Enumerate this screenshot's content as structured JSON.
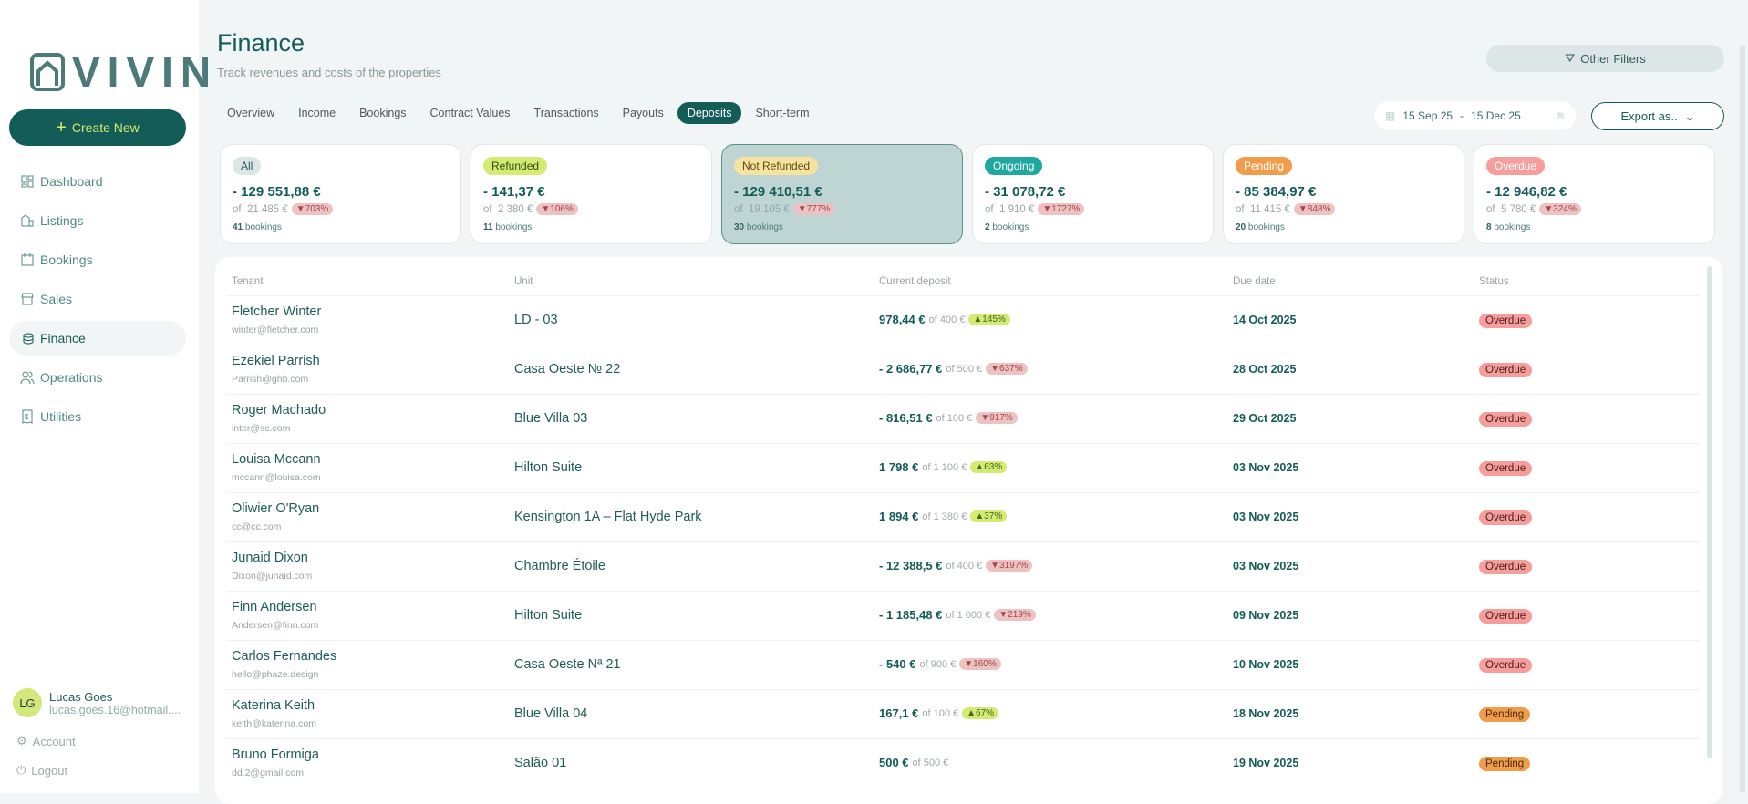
{
  "brand": {
    "logo_text": "VIVIN"
  },
  "sidebar": {
    "create_label": "Create New",
    "items": [
      {
        "label": "Dashboard",
        "icon": "dashboard-icon"
      },
      {
        "label": "Listings",
        "icon": "building-icon"
      },
      {
        "label": "Bookings",
        "icon": "calendar-icon"
      },
      {
        "label": "Sales",
        "icon": "store-icon"
      },
      {
        "label": "Finance",
        "icon": "coins-icon",
        "active": true
      },
      {
        "label": "Operations",
        "icon": "users-icon"
      },
      {
        "label": "Utilities",
        "icon": "receipt-icon"
      }
    ],
    "user": {
      "initials": "LG",
      "name": "Lucas Goes",
      "email": "lucas.goes.16@hotmail...."
    },
    "account_label": "Account",
    "logout_label": "Logout"
  },
  "header": {
    "title": "Finance",
    "subtitle": "Track revenues and costs of the properties",
    "other_filters": "Other Filters",
    "date_from": "15 Sep 25",
    "date_sep": "-",
    "date_to": "15 Dec 25",
    "export_label": "Export as.."
  },
  "tabs": [
    "Overview",
    "Income",
    "Bookings",
    "Contract Values",
    "Transactions",
    "Payouts",
    "Deposits",
    "Short-term"
  ],
  "active_tab": "Deposits",
  "cards": [
    {
      "label": "All",
      "amount": "- 129 551,88 €",
      "of": "of  21 485 €",
      "pct": "▼703%",
      "count": "41",
      "bookings": "bookings",
      "chip_bg": "#dde6e6",
      "chip_fg": "#1d5c58"
    },
    {
      "label": "Refunded",
      "amount": "- 141,37 €",
      "of": "of  2 380 €",
      "pct": "▼106%",
      "count": "11",
      "bookings": "bookings",
      "chip_bg": "#d5ea70",
      "chip_fg": "#2f4d1a"
    },
    {
      "label": "Not Refunded",
      "amount": "- 129 410,51 €",
      "of": "of  19 105 €",
      "pct": "▼777%",
      "count": "30",
      "bookings": "bookings",
      "chip_bg": "#f7e3a0",
      "chip_fg": "#5b4a1a"
    },
    {
      "label": "Ongoing",
      "amount": "- 31 078,72 €",
      "of": "of  1 910 €",
      "pct": "▼1727%",
      "count": "2",
      "bookings": "bookings",
      "chip_bg": "#1fa8a0",
      "chip_fg": "#ffffff"
    },
    {
      "label": "Pending",
      "amount": "- 85 384,97 €",
      "of": "of  11 415 €",
      "pct": "▼848%",
      "count": "20",
      "bookings": "bookings",
      "chip_bg": "#ef9d4a",
      "chip_fg": "#ffffff"
    },
    {
      "label": "Overdue",
      "amount": "- 12 946,82 €",
      "of": "of  5 780 €",
      "pct": "▼324%",
      "count": "8",
      "bookings": "bookings",
      "chip_bg": "#f59e9c",
      "chip_fg": "#ffffff"
    }
  ],
  "active_card": "Not Refunded",
  "table": {
    "columns": [
      "Tenant",
      "Unit",
      "Current deposit",
      "Due date",
      "Status"
    ],
    "rows": [
      {
        "name": "Fletcher Winter",
        "email": "winter@fletcher.com",
        "unit": "LD - 03",
        "deposit": "978,44 €",
        "of": "of 400 €",
        "pct": "▲145%",
        "dir": "up",
        "due": "14 Oct 2025",
        "status": "Overdue"
      },
      {
        "name": "Ezekiel Parrish",
        "email": "Parrish@ghb.com",
        "unit": "Casa Oeste № 22",
        "deposit": "- 2 686,77 €",
        "of": "of 500 €",
        "pct": "▼637%",
        "dir": "down",
        "due": "28 Oct 2025",
        "status": "Overdue"
      },
      {
        "name": "Roger Machado",
        "email": "inter@sc.com",
        "unit": "Blue Villa 03",
        "deposit": "- 816,51 €",
        "of": "of 100 €",
        "pct": "▼917%",
        "dir": "down",
        "due": "29 Oct 2025",
        "status": "Overdue"
      },
      {
        "name": "Louisa Mccann",
        "email": "mccann@louisa.com",
        "unit": "Hilton Suite",
        "deposit": "1 798 €",
        "of": "of 1 100 €",
        "pct": "▲63%",
        "dir": "up",
        "due": "03 Nov 2025",
        "status": "Overdue"
      },
      {
        "name": "Oliwier O'Ryan",
        "email": "cc@cc.com",
        "unit": "Kensington 1A – Flat Hyde Park",
        "deposit": "1 894 €",
        "of": "of 1 380 €",
        "pct": "▲37%",
        "dir": "up",
        "due": "03 Nov 2025",
        "status": "Overdue"
      },
      {
        "name": "Junaid Dixon",
        "email": "Dixon@junaid.com",
        "unit": "Chambre Étoile",
        "deposit": "- 12 388,5 €",
        "of": "of 400 €",
        "pct": "▼3197%",
        "dir": "down",
        "due": "03 Nov 2025",
        "status": "Overdue"
      },
      {
        "name": "Finn Andersen",
        "email": "Andersen@finn.com",
        "unit": "Hilton Suite",
        "deposit": "- 1 185,48 €",
        "of": "of 1 000 €",
        "pct": "▼219%",
        "dir": "down",
        "due": "09 Nov 2025",
        "status": "Overdue"
      },
      {
        "name": "Carlos Fernandes",
        "email": "hello@phaze.design",
        "unit": "Casa Oeste Nª 21",
        "deposit": "- 540 €",
        "of": "of 900 €",
        "pct": "▼160%",
        "dir": "down",
        "due": "10 Nov 2025",
        "status": "Overdue"
      },
      {
        "name": "Katerina Keith",
        "email": "keith@katerina.com",
        "unit": "Blue Villa 04",
        "deposit": "167,1 €",
        "of": "of 100 €",
        "pct": "▲67%",
        "dir": "up",
        "due": "18 Nov 2025",
        "status": "Pending"
      },
      {
        "name": "Bruno Formiga",
        "email": "dd.2@gmail.com",
        "unit": "Salão 01",
        "deposit": "500 €",
        "of": "of 500 €",
        "pct": "",
        "dir": "",
        "due": "19 Nov 2025",
        "status": "Pending"
      }
    ]
  },
  "colors": {
    "primary": "#135c58",
    "accent": "#d5ea70",
    "overdue": "#f59e9c",
    "pending": "#ef9d4a"
  }
}
